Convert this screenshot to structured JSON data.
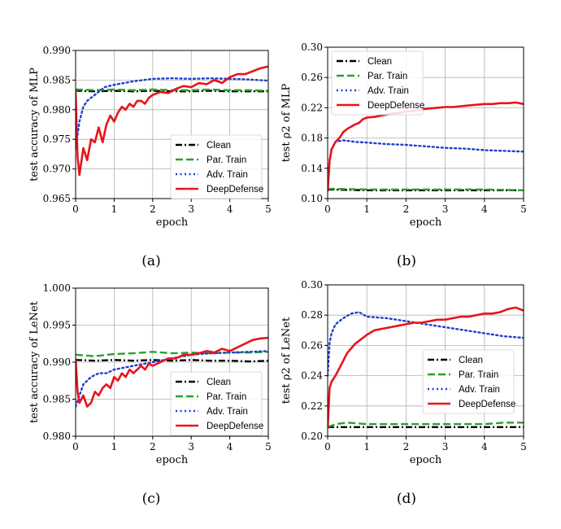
{
  "chart_data": [
    {
      "type": "line",
      "caption": "(a)",
      "xlabel": "epoch",
      "ylabel": "test accuracy of MLP",
      "xlim": [
        0,
        5
      ],
      "ylim": [
        0.965,
        0.99
      ],
      "xticks": [
        "0",
        "1",
        "2",
        "3",
        "4",
        "5"
      ],
      "yticks": [
        "0.965",
        "0.970",
        "0.975",
        "0.980",
        "0.985",
        "0.990"
      ],
      "grid": true,
      "legend_position": "lower-right",
      "series": [
        {
          "name": "Clean",
          "color": "#000000",
          "style": "dashdot",
          "x": [
            0,
            0.05,
            0.5,
            1,
            1.5,
            2,
            2.5,
            3,
            3.5,
            4,
            4.5,
            5
          ],
          "y": [
            0.9833,
            0.9832,
            0.9831,
            0.9832,
            0.9831,
            0.9832,
            0.9831,
            0.9831,
            0.9832,
            0.9831,
            0.9831,
            0.9831
          ]
        },
        {
          "name": "Par. Train",
          "color": "#2ca02c",
          "style": "dashed",
          "x": [
            0,
            0.05,
            0.5,
            1,
            1.5,
            2,
            2.5,
            3,
            3.5,
            4,
            4.5,
            5
          ],
          "y": [
            0.9834,
            0.9834,
            0.9833,
            0.9834,
            0.9833,
            0.9834,
            0.9833,
            0.9833,
            0.9834,
            0.9833,
            0.9833,
            0.9832
          ]
        },
        {
          "name": "Adv. Train",
          "color": "#1f3fd0",
          "style": "dotted",
          "x": [
            0,
            0.1,
            0.2,
            0.3,
            0.5,
            0.75,
            1,
            1.5,
            2,
            2.5,
            3,
            3.5,
            4,
            4.5,
            5
          ],
          "y": [
            0.9735,
            0.978,
            0.9805,
            0.9815,
            0.9825,
            0.9838,
            0.9842,
            0.9848,
            0.9852,
            0.9853,
            0.9852,
            0.9853,
            0.9852,
            0.9851,
            0.9849
          ]
        },
        {
          "name": "DeepDefense",
          "color": "#e8141c",
          "style": "solid",
          "x": [
            0,
            0.05,
            0.1,
            0.2,
            0.3,
            0.4,
            0.5,
            0.6,
            0.7,
            0.8,
            0.9,
            1.0,
            1.1,
            1.2,
            1.3,
            1.4,
            1.5,
            1.6,
            1.7,
            1.8,
            1.9,
            2.0,
            2.2,
            2.4,
            2.6,
            2.8,
            3.0,
            3.2,
            3.4,
            3.6,
            3.8,
            4.0,
            4.2,
            4.4,
            4.6,
            4.8,
            5.0
          ],
          "y": [
            0.983,
            0.972,
            0.969,
            0.9735,
            0.9715,
            0.975,
            0.9745,
            0.977,
            0.9745,
            0.9775,
            0.979,
            0.978,
            0.9795,
            0.9805,
            0.98,
            0.981,
            0.9805,
            0.9815,
            0.9815,
            0.981,
            0.982,
            0.9825,
            0.983,
            0.9828,
            0.9835,
            0.984,
            0.9838,
            0.9845,
            0.9843,
            0.985,
            0.9845,
            0.9855,
            0.986,
            0.986,
            0.9865,
            0.987,
            0.9873
          ]
        }
      ]
    },
    {
      "type": "line",
      "caption": "(b)",
      "xlabel": "epoch",
      "ylabel": "test ρ2 of MLP",
      "xlim": [
        0,
        5
      ],
      "ylim": [
        0.1,
        0.3
      ],
      "xticks": [
        "0",
        "1",
        "2",
        "3",
        "4",
        "5"
      ],
      "yticks": [
        "0.10",
        "0.14",
        "0.18",
        "0.22",
        "0.26",
        "0.30"
      ],
      "grid": true,
      "legend_position": "top-left",
      "series": [
        {
          "name": "Clean",
          "color": "#000000",
          "style": "dashdot",
          "x": [
            0,
            1,
            2,
            3,
            4,
            5
          ],
          "y": [
            0.112,
            0.111,
            0.111,
            0.111,
            0.111,
            0.111
          ]
        },
        {
          "name": "Par. Train",
          "color": "#2ca02c",
          "style": "dashed",
          "x": [
            0,
            1,
            2,
            3,
            4,
            5
          ],
          "y": [
            0.113,
            0.112,
            0.112,
            0.112,
            0.112,
            0.111
          ]
        },
        {
          "name": "Adv. Train",
          "color": "#1f3fd0",
          "style": "dotted",
          "x": [
            0,
            0.05,
            0.1,
            0.2,
            0.4,
            0.7,
            1.0,
            1.5,
            2.0,
            2.5,
            3.0,
            3.5,
            4.0,
            4.5,
            5.0
          ],
          "y": [
            0.11,
            0.15,
            0.165,
            0.175,
            0.177,
            0.175,
            0.174,
            0.172,
            0.171,
            0.169,
            0.167,
            0.166,
            0.164,
            0.163,
            0.162
          ]
        },
        {
          "name": "DeepDefense",
          "color": "#e8141c",
          "style": "solid",
          "x": [
            0,
            0.05,
            0.1,
            0.2,
            0.3,
            0.4,
            0.5,
            0.6,
            0.7,
            0.8,
            0.9,
            1.0,
            1.2,
            1.4,
            1.6,
            1.8,
            2.0,
            2.2,
            2.4,
            2.6,
            2.8,
            3.0,
            3.2,
            3.4,
            3.6,
            3.8,
            4.0,
            4.2,
            4.4,
            4.6,
            4.8,
            5.0
          ],
          "y": [
            0.11,
            0.15,
            0.165,
            0.175,
            0.18,
            0.188,
            0.192,
            0.195,
            0.198,
            0.2,
            0.205,
            0.207,
            0.208,
            0.21,
            0.212,
            0.213,
            0.215,
            0.216,
            0.218,
            0.219,
            0.22,
            0.221,
            0.221,
            0.222,
            0.223,
            0.224,
            0.225,
            0.225,
            0.226,
            0.226,
            0.227,
            0.225
          ]
        }
      ]
    },
    {
      "type": "line",
      "caption": "(c)",
      "xlabel": "epoch",
      "ylabel": "test accuracy of LeNet",
      "xlim": [
        0,
        5
      ],
      "ylim": [
        0.98,
        1.0
      ],
      "xticks": [
        "0",
        "1",
        "2",
        "3",
        "4",
        "5"
      ],
      "yticks": [
        "0.980",
        "0.985",
        "0.990",
        "0.995",
        "1.000"
      ],
      "grid": true,
      "legend_position": "lower-right",
      "series": [
        {
          "name": "Clean",
          "color": "#000000",
          "style": "dashdot",
          "x": [
            0,
            0.5,
            1,
            1.5,
            2,
            2.5,
            3,
            3.5,
            4,
            4.5,
            5
          ],
          "y": [
            0.9903,
            0.9902,
            0.9903,
            0.9902,
            0.9903,
            0.9902,
            0.9903,
            0.9902,
            0.9902,
            0.9901,
            0.9902
          ]
        },
        {
          "name": "Par. Train",
          "color": "#2ca02c",
          "style": "dashed",
          "x": [
            0,
            0.5,
            1,
            1.5,
            2,
            2.5,
            3,
            3.5,
            4,
            4.5,
            5
          ],
          "y": [
            0.991,
            0.9908,
            0.9911,
            0.9912,
            0.9914,
            0.9912,
            0.9913,
            0.9912,
            0.9913,
            0.9913,
            0.9914
          ]
        },
        {
          "name": "Adv. Train",
          "color": "#1f3fd0",
          "style": "dotted",
          "x": [
            0,
            0.1,
            0.2,
            0.4,
            0.6,
            0.8,
            1.0,
            1.5,
            2.0,
            2.5,
            3.0,
            3.5,
            4.0,
            4.5,
            5.0
          ],
          "y": [
            0.984,
            0.9855,
            0.987,
            0.988,
            0.9885,
            0.9885,
            0.989,
            0.9895,
            0.99,
            0.9905,
            0.991,
            0.9912,
            0.9913,
            0.9914,
            0.9915
          ]
        },
        {
          "name": "DeepDefense",
          "color": "#e8141c",
          "style": "solid",
          "x": [
            0,
            0.05,
            0.1,
            0.2,
            0.3,
            0.4,
            0.5,
            0.6,
            0.7,
            0.8,
            0.9,
            1.0,
            1.1,
            1.2,
            1.3,
            1.4,
            1.5,
            1.6,
            1.7,
            1.8,
            1.9,
            2.0,
            2.2,
            2.4,
            2.6,
            2.8,
            3.0,
            3.2,
            3.4,
            3.6,
            3.8,
            4.0,
            4.2,
            4.4,
            4.6,
            4.8,
            5.0
          ],
          "y": [
            0.9905,
            0.986,
            0.9845,
            0.9855,
            0.984,
            0.9845,
            0.986,
            0.9855,
            0.9865,
            0.987,
            0.9865,
            0.988,
            0.9875,
            0.9885,
            0.988,
            0.989,
            0.9885,
            0.989,
            0.9895,
            0.989,
            0.9898,
            0.9895,
            0.99,
            0.9905,
            0.9905,
            0.991,
            0.991,
            0.9912,
            0.9915,
            0.9913,
            0.9918,
            0.9915,
            0.992,
            0.9925,
            0.993,
            0.9932,
            0.9933
          ]
        }
      ]
    },
    {
      "type": "line",
      "caption": "(d)",
      "xlabel": "epoch",
      "ylabel": "test ρ2 of LeNet",
      "xlim": [
        0,
        5
      ],
      "ylim": [
        0.2,
        0.3
      ],
      "xticks": [
        "0",
        "1",
        "2",
        "3",
        "4",
        "5"
      ],
      "yticks": [
        "0.20",
        "0.22",
        "0.24",
        "0.26",
        "0.28",
        "0.30"
      ],
      "grid": true,
      "legend_position": "lower-right",
      "series": [
        {
          "name": "Clean",
          "color": "#000000",
          "style": "dashdot",
          "x": [
            0,
            0.5,
            1,
            1.5,
            2,
            2.5,
            3,
            3.5,
            4,
            4.5,
            5
          ],
          "y": [
            0.206,
            0.206,
            0.206,
            0.206,
            0.206,
            0.206,
            0.206,
            0.206,
            0.206,
            0.206,
            0.206
          ]
        },
        {
          "name": "Par. Train",
          "color": "#2ca02c",
          "style": "dashed",
          "x": [
            0,
            0.2,
            0.5,
            1,
            1.5,
            2,
            2.5,
            3,
            3.5,
            4,
            4.5,
            5
          ],
          "y": [
            0.206,
            0.208,
            0.209,
            0.208,
            0.208,
            0.208,
            0.208,
            0.208,
            0.208,
            0.208,
            0.209,
            0.209
          ]
        },
        {
          "name": "Adv. Train",
          "color": "#1f3fd0",
          "style": "dotted",
          "x": [
            0,
            0.05,
            0.1,
            0.2,
            0.4,
            0.6,
            0.8,
            1.0,
            1.5,
            2.0,
            2.5,
            3.0,
            3.5,
            4.0,
            4.5,
            5.0
          ],
          "y": [
            0.24,
            0.262,
            0.268,
            0.274,
            0.278,
            0.281,
            0.282,
            0.279,
            0.278,
            0.276,
            0.274,
            0.272,
            0.27,
            0.268,
            0.266,
            0.265
          ]
        },
        {
          "name": "DeepDefense",
          "color": "#e8141c",
          "style": "solid",
          "x": [
            0,
            0.05,
            0.1,
            0.2,
            0.3,
            0.4,
            0.5,
            0.6,
            0.7,
            0.8,
            0.9,
            1.0,
            1.2,
            1.4,
            1.6,
            1.8,
            2.0,
            2.2,
            2.4,
            2.6,
            2.8,
            3.0,
            3.2,
            3.4,
            3.6,
            3.8,
            4.0,
            4.2,
            4.4,
            4.6,
            4.8,
            5.0
          ],
          "y": [
            0.205,
            0.232,
            0.236,
            0.24,
            0.245,
            0.25,
            0.255,
            0.258,
            0.261,
            0.263,
            0.265,
            0.267,
            0.27,
            0.271,
            0.272,
            0.273,
            0.274,
            0.275,
            0.275,
            0.276,
            0.277,
            0.277,
            0.278,
            0.279,
            0.279,
            0.28,
            0.281,
            0.281,
            0.282,
            0.284,
            0.285,
            0.283
          ]
        }
      ]
    }
  ]
}
